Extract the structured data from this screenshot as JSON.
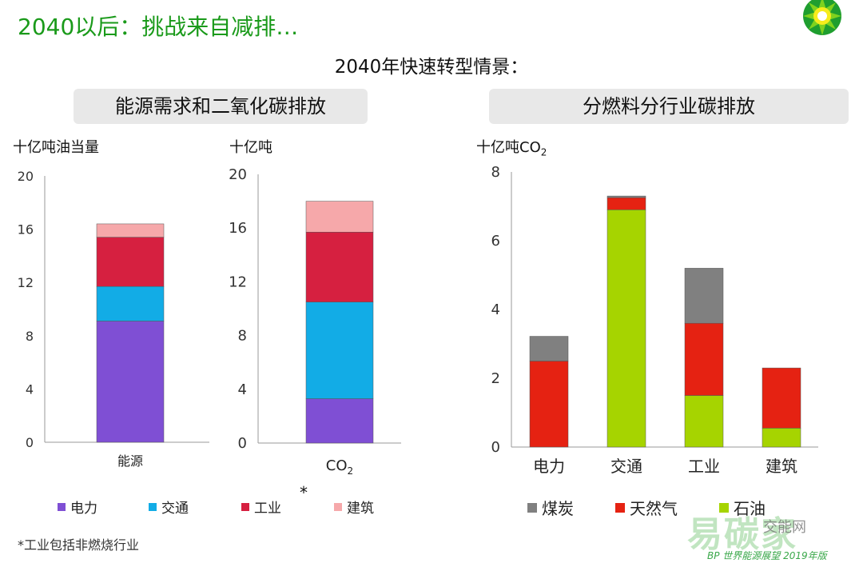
{
  "header": {
    "title": "2040以后：挑战来自减排…",
    "subtitle": "2040年快速转型情景："
  },
  "panels": {
    "left_title": "能源需求和二氧化碳排放",
    "right_title": "分燃料分行业碳排放"
  },
  "footnote": "*工业包括非燃烧行业",
  "star_mark": "*",
  "credit": "BP 世界能源展望 2019年版",
  "watermark": {
    "main": "易碳家",
    "small": "交能网"
  },
  "colors": {
    "power": "#7f4fd4",
    "transport": "#12ace6",
    "industry": "#d62040",
    "buildings": "#f6a8aa",
    "coal": "#808080",
    "gas": "#e52212",
    "oil": "#a6d400",
    "title_green": "#1a9a1a"
  },
  "chart_data": [
    {
      "type": "bar",
      "stacked": true,
      "unit_label": "十亿吨油当量",
      "categories": [
        "能源"
      ],
      "series": [
        {
          "name": "电力",
          "values": [
            9.1
          ],
          "color": "#7f4fd4"
        },
        {
          "name": "交通",
          "values": [
            2.6
          ],
          "color": "#12ace6"
        },
        {
          "name": "工业",
          "values": [
            3.7
          ],
          "color": "#d62040"
        },
        {
          "name": "建筑",
          "values": [
            1.0
          ],
          "color": "#f6a8aa"
        }
      ],
      "ylim": [
        0,
        20
      ],
      "yticks": [
        "0",
        "4",
        "8",
        "12",
        "16",
        "20"
      ],
      "grid": false
    },
    {
      "type": "bar",
      "stacked": true,
      "unit_label": "十亿吨",
      "categories": [
        "CO2"
      ],
      "category_main": "CO",
      "category_sub": "2",
      "series": [
        {
          "name": "电力",
          "values": [
            3.3
          ],
          "color": "#7f4fd4"
        },
        {
          "name": "交通",
          "values": [
            7.2
          ],
          "color": "#12ace6"
        },
        {
          "name": "工业",
          "values": [
            5.2
          ],
          "color": "#d62040"
        },
        {
          "name": "建筑",
          "values": [
            2.3
          ],
          "color": "#f6a8aa"
        }
      ],
      "ylim": [
        0,
        20
      ],
      "yticks": [
        "0",
        "4",
        "8",
        "12",
        "16",
        "20"
      ],
      "grid": false
    },
    {
      "type": "bar",
      "stacked": true,
      "unit_label_main": "十亿吨CO",
      "unit_label_sub": "2",
      "categories": [
        "电力",
        "交通",
        "工业",
        "建筑"
      ],
      "series": [
        {
          "name": "石油",
          "values": [
            0.0,
            6.9,
            1.5,
            0.55
          ],
          "color": "#a6d400"
        },
        {
          "name": "天然气",
          "values": [
            2.5,
            0.35,
            2.1,
            1.75
          ],
          "color": "#e52212"
        },
        {
          "name": "煤炭",
          "values": [
            0.72,
            0.05,
            1.6,
            0.0
          ],
          "color": "#808080"
        }
      ],
      "ylim": [
        0,
        8
      ],
      "yticks": [
        "0",
        "2",
        "4",
        "6",
        "8"
      ],
      "grid": false
    }
  ],
  "legend_left": [
    {
      "label": "电力",
      "color": "#7f4fd4"
    },
    {
      "label": "交通",
      "color": "#12ace6"
    },
    {
      "label": "工业",
      "color": "#d62040"
    },
    {
      "label": "建筑",
      "color": "#f6a8aa"
    }
  ],
  "legend_right": [
    {
      "label": "煤炭",
      "color": "#808080"
    },
    {
      "label": "天然气",
      "color": "#e52212"
    },
    {
      "label": "石油",
      "color": "#a6d400"
    }
  ]
}
